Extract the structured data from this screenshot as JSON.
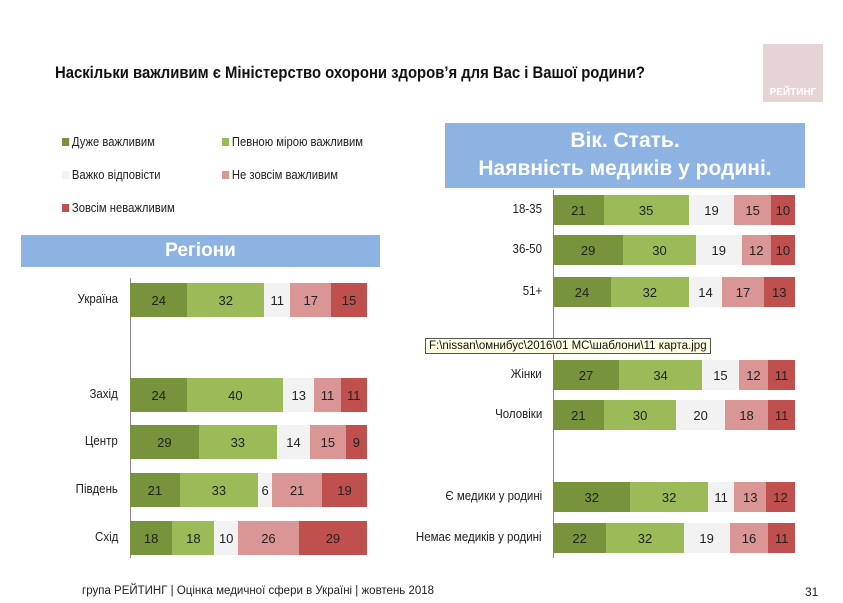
{
  "title": "Наскільки важливим є Міністерство охорони здоров’я для Вас і Вашої родини?",
  "logo": "РЕЙТИНГ",
  "tooltip": "F:\\nissan\\омнибус\\2016\\01 MC\\шаблони\\11 карта.jpg",
  "footer": "група РЕЙТИНГ  |  Оцінка медичної сфери в Україні  |  жовтень 2018",
  "page_number": "31",
  "colors": [
    "#77933c",
    "#9bbb59",
    "#f2f2f2",
    "#d99694",
    "#c0504d"
  ],
  "chart_data": [
    {
      "type": "bar",
      "orientation": "horizontal",
      "stacked": true,
      "title": "Регіони",
      "legend": [
        "Дуже важливим",
        "Певною мірою важливим",
        "Важко відповісти",
        "Не зовсім важливим",
        "Зовсім неважливим"
      ],
      "categories": [
        "Україна",
        "Захід",
        "Центр",
        "Південь",
        "Схід"
      ],
      "rows": [
        [
          24,
          32,
          11,
          17,
          15
        ],
        [
          24,
          40,
          13,
          11,
          11
        ],
        [
          29,
          33,
          14,
          15,
          9
        ],
        [
          21,
          33,
          6,
          21,
          19
        ],
        [
          18,
          18,
          10,
          26,
          29
        ]
      ]
    },
    {
      "type": "bar",
      "orientation": "horizontal",
      "stacked": true,
      "title": "Вік. Стать. Наявність медиків у родині.",
      "title_lines": [
        "Вік. Стать.",
        "Наявність медиків у родині."
      ],
      "categories": [
        "18-35",
        "36-50",
        "51+",
        "Жінки",
        "Чоловіки",
        "Є медики у родині",
        "Немає медиків у родині"
      ],
      "rows": [
        [
          21,
          35,
          19,
          15,
          10
        ],
        [
          29,
          30,
          19,
          12,
          10
        ],
        [
          24,
          32,
          14,
          17,
          13
        ],
        [
          27,
          34,
          15,
          12,
          11
        ],
        [
          21,
          30,
          20,
          18,
          11
        ],
        [
          32,
          32,
          11,
          13,
          12
        ],
        [
          22,
          32,
          19,
          16,
          11
        ]
      ]
    }
  ]
}
